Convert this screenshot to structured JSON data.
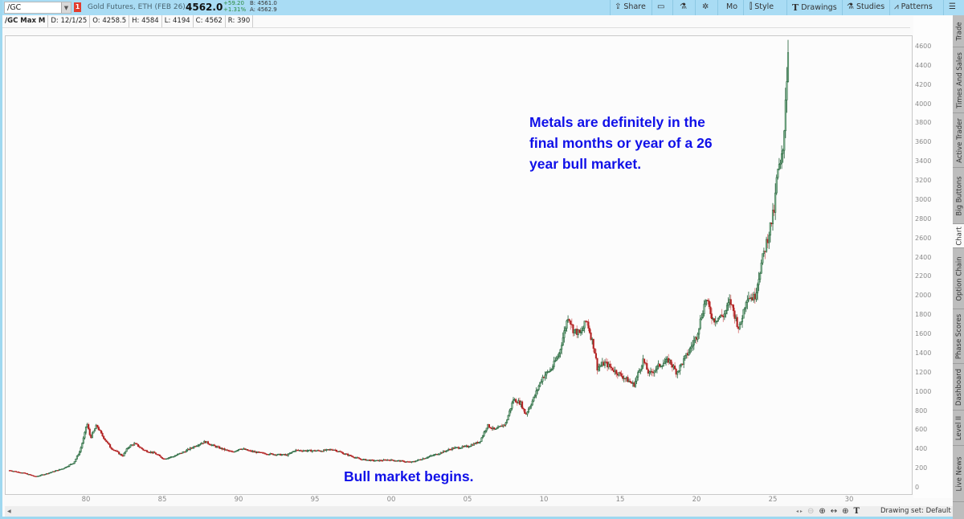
{
  "toolbar": {
    "symbol": "/GC",
    "link_badge": "1",
    "description": "Gold Futures, ETH (FEB 26)",
    "last_price": "4562.0",
    "net_change": "+59.20",
    "pct_change": "+1.31%",
    "bid": "B: 4561.0",
    "ask": "A: 4562.9",
    "buttons": {
      "share": "Share",
      "mo": "Mo",
      "style": "Style",
      "drawings": "Drawings",
      "studies": "Studies",
      "patterns": "Patterns"
    }
  },
  "infobar": {
    "name": "/GC Max M",
    "date": "D: 12/1/25",
    "open": "O: 4258.5",
    "high": "H: 4584",
    "low": "L: 4194",
    "close": "C: 4562",
    "range": "R: 390"
  },
  "annotations": {
    "top": [
      "Metals are definitely in the",
      "final months or year of a 26",
      "year bull market."
    ],
    "bottom": "Bull market begins."
  },
  "bottom_bar": {
    "drawing_set": "Drawing set: Default"
  },
  "side_tabs": [
    "Trade",
    "Times And Sales",
    "Active Trader",
    "Big Buttons",
    "Chart",
    "Option Chain",
    "Phase Scores",
    "Dashboard",
    "Level II",
    "Live News"
  ],
  "active_side_tab": "Chart",
  "colors": {
    "up_candle": "#1e5e34",
    "up_fill": "#8fbf9f",
    "down_candle": "#b22222",
    "annotation": "#1010e8",
    "toolbar_bg": "#a9dcf4"
  },
  "chart_data": {
    "type": "candlestick",
    "title": "/GC Max M",
    "interval": "monthly",
    "xlabel": "",
    "ylabel": "",
    "x_ticks": [
      "80",
      "85",
      "90",
      "95",
      "00",
      "05",
      "10",
      "15",
      "20",
      "25",
      "30"
    ],
    "y_ticks": [
      0,
      200,
      400,
      600,
      800,
      1000,
      1200,
      1400,
      1600,
      1800,
      2000,
      2200,
      2400,
      2600,
      2800,
      3000,
      3200,
      3400,
      3600,
      3800,
      4000,
      4200,
      4400,
      4600
    ],
    "ylim": [
      0,
      4700
    ],
    "xlim": [
      1975.0,
      2033.0
    ],
    "price_path": [
      [
        1975.0,
        180
      ],
      [
        1976.0,
        150
      ],
      [
        1976.7,
        115
      ],
      [
        1977.5,
        150
      ],
      [
        1978.5,
        200
      ],
      [
        1979.2,
        260
      ],
      [
        1979.6,
        380
      ],
      [
        1979.9,
        550
      ],
      [
        1980.05,
        680
      ],
      [
        1980.3,
        520
      ],
      [
        1980.7,
        650
      ],
      [
        1981.0,
        560
      ],
      [
        1981.6,
        420
      ],
      [
        1982.4,
        330
      ],
      [
        1982.8,
        430
      ],
      [
        1983.2,
        460
      ],
      [
        1983.8,
        390
      ],
      [
        1984.5,
        360
      ],
      [
        1985.1,
        300
      ],
      [
        1985.8,
        330
      ],
      [
        1986.5,
        380
      ],
      [
        1987.2,
        440
      ],
      [
        1987.8,
        480
      ],
      [
        1988.3,
        440
      ],
      [
        1989.0,
        400
      ],
      [
        1989.6,
        370
      ],
      [
        1990.1,
        410
      ],
      [
        1990.8,
        380
      ],
      [
        1991.5,
        360
      ],
      [
        1992.5,
        345
      ],
      [
        1993.2,
        340
      ],
      [
        1993.7,
        390
      ],
      [
        1994.5,
        385
      ],
      [
        1995.5,
        385
      ],
      [
        1996.2,
        400
      ],
      [
        1997.0,
        350
      ],
      [
        1998.0,
        295
      ],
      [
        1999.0,
        280
      ],
      [
        1999.8,
        290
      ],
      [
        2000.5,
        280
      ],
      [
        2001.3,
        265
      ],
      [
        2002.0,
        300
      ],
      [
        2003.0,
        350
      ],
      [
        2004.0,
        410
      ],
      [
        2005.0,
        430
      ],
      [
        2005.8,
        480
      ],
      [
        2006.3,
        650
      ],
      [
        2006.8,
        600
      ],
      [
        2007.5,
        670
      ],
      [
        2008.0,
        920
      ],
      [
        2008.5,
        880
      ],
      [
        2008.8,
        760
      ],
      [
        2009.3,
        920
      ],
      [
        2009.9,
        1150
      ],
      [
        2010.5,
        1240
      ],
      [
        2011.0,
        1400
      ],
      [
        2011.6,
        1800
      ],
      [
        2011.9,
        1650
      ],
      [
        2012.4,
        1600
      ],
      [
        2012.8,
        1750
      ],
      [
        2013.3,
        1450
      ],
      [
        2013.5,
        1250
      ],
      [
        2014.0,
        1300
      ],
      [
        2014.8,
        1200
      ],
      [
        2015.5,
        1120
      ],
      [
        2015.9,
        1070
      ],
      [
        2016.5,
        1330
      ],
      [
        2016.9,
        1180
      ],
      [
        2017.6,
        1280
      ],
      [
        2018.2,
        1330
      ],
      [
        2018.7,
        1200
      ],
      [
        2019.5,
        1420
      ],
      [
        2020.0,
        1580
      ],
      [
        2020.6,
        1970
      ],
      [
        2021.1,
        1750
      ],
      [
        2021.8,
        1800
      ],
      [
        2022.2,
        1950
      ],
      [
        2022.8,
        1650
      ],
      [
        2023.3,
        2000
      ],
      [
        2023.8,
        1980
      ],
      [
        2024.2,
        2300
      ],
      [
        2024.8,
        2700
      ],
      [
        2025.1,
        2900
      ],
      [
        2025.3,
        3300
      ],
      [
        2025.5,
        3350
      ],
      [
        2025.7,
        3550
      ],
      [
        2025.8,
        4000
      ],
      [
        2025.92,
        4300
      ],
      [
        2026.0,
        4562
      ]
    ]
  }
}
